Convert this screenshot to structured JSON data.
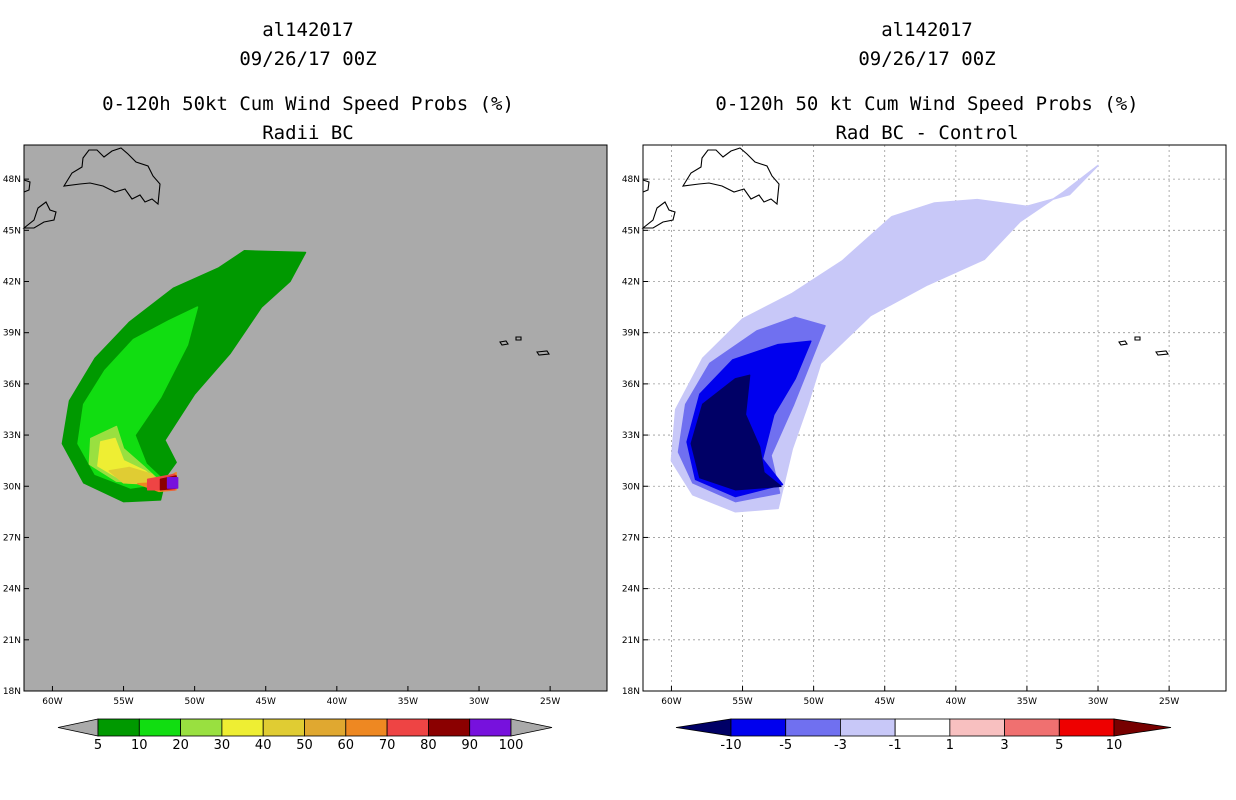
{
  "panels": [
    {
      "id": "radii-bc",
      "title_lines": [
        "al142017",
        "09/26/17 00Z",
        "0-120h 50kt Cum Wind Speed Probs (%)",
        "Radii BC"
      ],
      "background": "#aaaaaa",
      "show_grid": false,
      "colorbar": {
        "colors": [
          "#009900",
          "#11dd11",
          "#99e040",
          "#eeee33",
          "#e0cc33",
          "#e0a830",
          "#ee8822",
          "#ee4444",
          "#8b0000",
          "#7711dd"
        ],
        "labels": [
          "5",
          "10",
          "20",
          "30",
          "40",
          "50",
          "60",
          "70",
          "80",
          "90",
          "100"
        ],
        "left_arrow_color": "#aaaaaa",
        "right_arrow_color": "#aaaaaa"
      }
    },
    {
      "id": "rad-bc-minus-control",
      "title_lines": [
        "al142017",
        "09/26/17 00Z",
        "0-120h 50 kt Cum Wind Speed Probs (%)",
        "Rad BC - Control"
      ],
      "background": "#ffffff",
      "show_grid": true,
      "colorbar": {
        "colors": [
          "#0000ee",
          "#7070f0",
          "#c8c8f8",
          "#ffffff",
          "#f8c0c0",
          "#f07070",
          "#ee0000"
        ],
        "labels": [
          "-10",
          "-5",
          "-3",
          "-1",
          "1",
          "3",
          "5",
          "10"
        ],
        "left_arrow_color": "#000066",
        "right_arrow_color": "#770000"
      }
    }
  ],
  "chart_data": {
    "type": "contour-map",
    "title": "0-120h 50kt Cum Wind Speed Probs (%)",
    "storm_id": "al142017",
    "valid_time": "09/26/17 00Z",
    "lon_range": [
      -62,
      -21
    ],
    "lat_range": [
      18,
      50
    ],
    "x_ticks": [
      -60,
      -55,
      -50,
      -45,
      -40,
      -35,
      -30,
      -25
    ],
    "y_ticks": [
      48,
      45,
      42,
      39,
      36,
      33,
      30,
      27,
      24,
      21,
      18
    ],
    "x_tick_labels": [
      "60W",
      "55W",
      "50W",
      "45W",
      "40W",
      "35W",
      "30W",
      "25W"
    ],
    "y_tick_labels": [
      "48N",
      "45N",
      "42N",
      "39N",
      "36N",
      "33N",
      "30N",
      "27N",
      "24N",
      "21N",
      "18N"
    ],
    "series": [
      {
        "name": "Radii BC probability (%)",
        "levels": [
          5,
          10,
          20,
          30,
          40,
          50,
          60,
          70,
          80,
          90,
          100
        ],
        "regions": [
          {
            "min": 5,
            "polygon": [
              [
                -52,
                30.6
              ],
              [
                -52.4,
                29.2
              ],
              [
                -55,
                29.1
              ],
              [
                -57.8,
                30.2
              ],
              [
                -59.3,
                32.5
              ],
              [
                -58.8,
                35
              ],
              [
                -57,
                37.5
              ],
              [
                -54.6,
                39.6
              ],
              [
                -51.5,
                41.6
              ],
              [
                -48.3,
                42.8
              ],
              [
                -46.5,
                43.8
              ],
              [
                -42.2,
                43.7
              ],
              [
                -43.3,
                42
              ],
              [
                -45.3,
                40.5
              ],
              [
                -47.5,
                37.8
              ],
              [
                -50,
                35.4
              ],
              [
                -52.1,
                32.7
              ],
              [
                -51.3,
                31.4
              ]
            ]
          },
          {
            "min": 10,
            "polygon": [
              [
                -52,
                30.2
              ],
              [
                -54.5,
                29.9
              ],
              [
                -57,
                30.7
              ],
              [
                -58.2,
                32.5
              ],
              [
                -57.8,
                34.8
              ],
              [
                -56.3,
                36.8
              ],
              [
                -54.3,
                38.6
              ],
              [
                -51.8,
                39.7
              ],
              [
                -49.8,
                40.5
              ],
              [
                -50.5,
                38.3
              ],
              [
                -52.4,
                35.2
              ],
              [
                -54.2,
                33
              ],
              [
                -53.4,
                31.3
              ]
            ]
          },
          {
            "min": 20,
            "polygon": [
              [
                -52.2,
                30.1
              ],
              [
                -55.5,
                30.3
              ],
              [
                -57.4,
                31.3
              ],
              [
                -57.3,
                32.8
              ],
              [
                -55.5,
                33.5
              ],
              [
                -55,
                32.2
              ],
              [
                -53.5,
                31.1
              ]
            ]
          },
          {
            "min": 30,
            "polygon": [
              [
                -52.4,
                30.2
              ],
              [
                -55,
                30.3
              ],
              [
                -56.8,
                31.2
              ],
              [
                -56.6,
                32.6
              ],
              [
                -55.6,
                32.8
              ],
              [
                -55,
                31.5
              ],
              [
                -53.5,
                30.9
              ]
            ]
          },
          {
            "min": 40,
            "polygon": [
              [
                -52.5,
                30.1
              ],
              [
                -55,
                30.2
              ],
              [
                -56,
                30.9
              ],
              [
                -54.6,
                31.1
              ],
              [
                -53,
                30.7
              ]
            ]
          },
          {
            "min": 60,
            "polygon": [
              [
                -51.3,
                30.8
              ],
              [
                -52.6,
                30.2
              ],
              [
                -54,
                30.15
              ],
              [
                -52.5,
                29.7
              ],
              [
                -51.3,
                29.8
              ]
            ]
          },
          {
            "min": 70,
            "polygon": [
              [
                -51.4,
                30.7
              ],
              [
                -53.3,
                30.4
              ],
              [
                -53.3,
                29.8
              ],
              [
                -51.4,
                29.8
              ]
            ]
          },
          {
            "min": 80,
            "polygon": [
              [
                -51.3,
                30.6
              ],
              [
                -52.4,
                30.4
              ],
              [
                -52.4,
                29.8
              ],
              [
                -51.3,
                29.9
              ]
            ]
          },
          {
            "min": 90,
            "polygon": [
              [
                -51.2,
                30.5
              ],
              [
                -51.9,
                30.5
              ],
              [
                -51.9,
                29.9
              ],
              [
                -51.2,
                29.9
              ]
            ]
          }
        ]
      },
      {
        "name": "Rad BC minus Control (%)",
        "levels": [
          -10,
          -5,
          -3,
          -1,
          1,
          3,
          5,
          10
        ],
        "regions": [
          {
            "max": -1,
            "polygon": [
              [
                -52.5,
                28.7
              ],
              [
                -55.5,
                28.5
              ],
              [
                -58.5,
                29.5
              ],
              [
                -60,
                31.5
              ],
              [
                -59.7,
                34.5
              ],
              [
                -57.8,
                37.5
              ],
              [
                -55,
                39.8
              ],
              [
                -51.5,
                41.3
              ],
              [
                -48,
                43.2
              ],
              [
                -44.5,
                45.8
              ],
              [
                -41.5,
                46.6
              ],
              [
                -38.5,
                46.8
              ],
              [
                -35,
                46.4
              ],
              [
                -32,
                47.1
              ],
              [
                -30,
                48.8
              ],
              [
                -32.5,
                47.2
              ],
              [
                -35.5,
                45.5
              ],
              [
                -38,
                43.3
              ],
              [
                -42,
                41.8
              ],
              [
                -46,
                40
              ],
              [
                -49.5,
                37.2
              ],
              [
                -50.4,
                34.8
              ],
              [
                -51.5,
                32.2
              ]
            ]
          },
          {
            "max": -3,
            "polygon": [
              [
                -52.4,
                29.6
              ],
              [
                -55.5,
                29.1
              ],
              [
                -58.5,
                30.2
              ],
              [
                -59.5,
                32
              ],
              [
                -59,
                34.8
              ],
              [
                -57.3,
                37.2
              ],
              [
                -54,
                39.1
              ],
              [
                -51.3,
                39.9
              ],
              [
                -49.2,
                39.4
              ],
              [
                -50.3,
                37.1
              ],
              [
                -51.4,
                34.8
              ],
              [
                -53,
                31.8
              ]
            ]
          },
          {
            "max": -5,
            "polygon": [
              [
                -52.2,
                30.1
              ],
              [
                -55.5,
                29.4
              ],
              [
                -58.3,
                30.4
              ],
              [
                -58.9,
                32.6
              ],
              [
                -58,
                35.4
              ],
              [
                -55.7,
                37.4
              ],
              [
                -52.5,
                38.3
              ],
              [
                -50.2,
                38.5
              ],
              [
                -51.3,
                36.3
              ],
              [
                -52.8,
                34.2
              ],
              [
                -53.6,
                31.6
              ]
            ]
          },
          {
            "max": -10,
            "polygon": [
              [
                -52.3,
                30
              ],
              [
                -55.5,
                29.8
              ],
              [
                -58,
                30.5
              ],
              [
                -58.6,
                32.5
              ],
              [
                -57.8,
                34.8
              ],
              [
                -55.5,
                36.3
              ],
              [
                -54.5,
                36.5
              ],
              [
                -54.8,
                34.2
              ],
              [
                -53.8,
                32.3
              ],
              [
                -53.5,
                30.8
              ]
            ]
          }
        ]
      }
    ]
  }
}
